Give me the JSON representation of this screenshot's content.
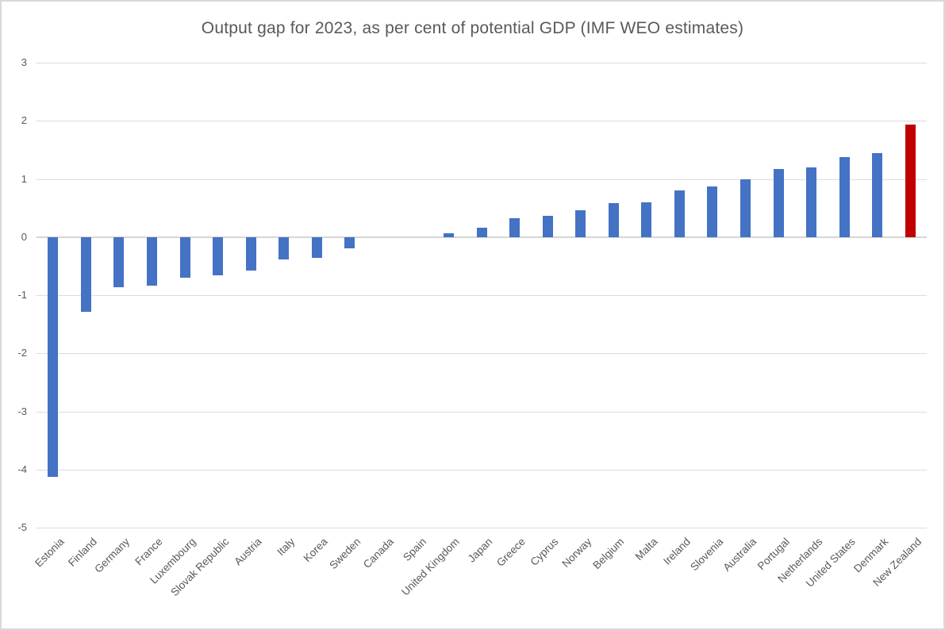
{
  "chart_data": {
    "type": "bar",
    "title": "Output gap for 2023, as per cent of potential GDP (IMF WEO estimates)",
    "categories": [
      "Estonia",
      "Finland",
      "Germany",
      "France",
      "Luxembourg",
      "Slovak Republic",
      "Austria",
      "Italy",
      "Korea",
      "Sweden",
      "Canada",
      "Spain",
      "United Kingdom",
      "Japan",
      "Greece",
      "Cyprus",
      "Norway",
      "Belgium",
      "Malta",
      "Ireland",
      "Slovenia",
      "Australia",
      "Portugal",
      "Netherlands",
      "United States",
      "Denmark",
      "New Zealand"
    ],
    "values": [
      -4.12,
      -1.29,
      -0.86,
      -0.84,
      -0.7,
      -0.66,
      -0.57,
      -0.39,
      -0.36,
      -0.2,
      0.0,
      0.0,
      0.06,
      0.16,
      0.33,
      0.36,
      0.46,
      0.58,
      0.6,
      0.8,
      0.87,
      1.0,
      1.17,
      1.2,
      1.37,
      1.45,
      1.94
    ],
    "highlight_category": "New Zealand",
    "highlight_index": 26,
    "xlabel": "",
    "ylabel": "",
    "ylim": [
      -5,
      3
    ],
    "yticks": [
      3,
      2,
      1,
      0,
      -1,
      -2,
      -3,
      -4,
      -5
    ],
    "grid": true,
    "legend_position": "none",
    "colors": {
      "bar": "#4472C4",
      "highlight_bar": "#C00000",
      "gridline": "#DCDCDC",
      "zero_line": "#D6D6D6",
      "text": "#595959",
      "frame_border": "#D9D9D9",
      "background": "#FFFFFF"
    }
  }
}
